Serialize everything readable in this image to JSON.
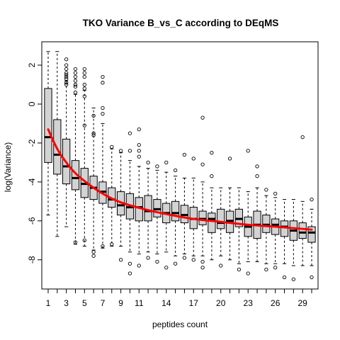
{
  "chart_data": {
    "type": "boxplot",
    "title": "TKO Variance B_vs_C according to DEqMS",
    "xlabel": "peptides count",
    "ylabel": "log(Variance)",
    "x_tick_labels": [
      "1",
      "3",
      "5",
      "7",
      "9",
      "11",
      "14",
      "17",
      "20",
      "23",
      "26",
      "29"
    ],
    "y_ticks": [
      2,
      0,
      -2,
      -4,
      -6,
      -8
    ],
    "y_tick_labels": [
      "2",
      "0",
      "-2",
      "-4",
      "-6",
      "-8"
    ],
    "ylim": [
      -9.5,
      3.2
    ],
    "categories": [
      "1",
      "2",
      "3",
      "4",
      "5",
      "6",
      "7",
      "8",
      "9",
      "10",
      "11",
      "12",
      "13",
      "14",
      "15",
      "16",
      "17",
      "18",
      "19",
      "20",
      "21",
      "22",
      "23",
      "24",
      "25",
      "26",
      "27",
      "28",
      "29",
      "30"
    ],
    "boxes": [
      {
        "lw": -5.7,
        "q1": -3.0,
        "med": -1.7,
        "q3": 0.8,
        "uw": 2.7,
        "out": []
      },
      {
        "lw": -6.8,
        "q1": -3.6,
        "med": -2.6,
        "q3": -0.8,
        "uw": 2.7,
        "out": []
      },
      {
        "lw": -6.3,
        "q1": -4.1,
        "med": -3.2,
        "q3": -1.8,
        "uw": 1.2,
        "out": [
          1.3,
          1.4,
          1.5,
          1.6,
          1.8,
          2.0,
          2.3,
          1.1,
          1.0
        ]
      },
      {
        "lw": -7.2,
        "q1": -4.4,
        "med": -3.8,
        "q3": -2.9,
        "uw": 0.5,
        "out": [
          0.9,
          1.0,
          1.2,
          1.4,
          1.6,
          1.8,
          0.6,
          -7.1
        ]
      },
      {
        "lw": -7.3,
        "q1": -4.8,
        "med": -4.1,
        "q3": -3.3,
        "uw": 0.7,
        "out": [
          0.8,
          1.0,
          1.4,
          1.6,
          1.8,
          0.4,
          -1.1,
          -7.0
        ]
      },
      {
        "lw": -7.5,
        "q1": -4.9,
        "med": -4.3,
        "q3": -3.7,
        "uw": -0.2,
        "out": [
          -0.6,
          -1.5,
          -1.6,
          -7.6,
          -7.8
        ]
      },
      {
        "lw": -7.4,
        "q1": -5.1,
        "med": -4.5,
        "q3": -4.0,
        "uw": -1.0,
        "out": [
          -0.2,
          -0.5,
          1.1,
          1.4,
          -7.3
        ]
      },
      {
        "lw": -7.3,
        "q1": -5.3,
        "med": -4.9,
        "q3": -4.3,
        "uw": -2.3,
        "out": [
          -2.2,
          -7.2
        ]
      },
      {
        "lw": -7.3,
        "q1": -5.7,
        "med": -5.2,
        "q3": -4.5,
        "uw": -2.5,
        "out": [
          -2.4,
          -8.0
        ]
      },
      {
        "lw": -7.6,
        "q1": -5.9,
        "med": -5.3,
        "q3": -4.6,
        "uw": -2.9,
        "out": [
          -1.5,
          -2.4,
          -8.2,
          -8.7
        ]
      },
      {
        "lw": -7.7,
        "q1": -6.0,
        "med": -5.3,
        "q3": -4.8,
        "uw": -3.2,
        "out": [
          -1.3,
          -2.1,
          -2.4,
          -2.7,
          -8.3
        ]
      },
      {
        "lw": -7.6,
        "q1": -6.0,
        "med": -5.5,
        "q3": -4.7,
        "uw": -3.3,
        "out": [
          -3.0,
          -7.9
        ]
      },
      {
        "lw": -7.7,
        "q1": -5.8,
        "med": -5.4,
        "q3": -4.9,
        "uw": -3.4,
        "out": [
          -3.2,
          -8.1
        ]
      },
      {
        "lw": -7.6,
        "q1": -6.1,
        "med": -5.6,
        "q3": -5.1,
        "uw": -3.5,
        "out": [
          -3.0,
          -8.4
        ]
      },
      {
        "lw": -7.8,
        "q1": -6.0,
        "med": -5.6,
        "q3": -5.0,
        "uw": -3.7,
        "out": [
          -3.4,
          -8.2
        ]
      },
      {
        "lw": -7.7,
        "q1": -6.1,
        "med": -5.7,
        "q3": -5.2,
        "uw": -3.8,
        "out": [
          -2.6,
          -7.9
        ]
      },
      {
        "lw": -7.8,
        "q1": -6.4,
        "med": -5.9,
        "q3": -5.3,
        "uw": -3.8,
        "out": [
          -2.8,
          -8.0
        ]
      },
      {
        "lw": -7.8,
        "q1": -6.2,
        "med": -5.9,
        "q3": -5.5,
        "uw": -4.0,
        "out": [
          -0.7,
          -3.1,
          -8.1,
          -8.4
        ]
      },
      {
        "lw": -8.0,
        "q1": -6.6,
        "med": -5.9,
        "q3": -5.6,
        "uw": -4.3,
        "out": [
          -2.5,
          -3.7
        ]
      },
      {
        "lw": -7.8,
        "q1": -6.4,
        "med": -6.1,
        "q3": -5.4,
        "uw": -4.3,
        "out": [
          -8.3
        ]
      },
      {
        "lw": -8.0,
        "q1": -6.6,
        "med": -6.0,
        "q3": -5.5,
        "uw": -4.3,
        "out": [
          -2.8
        ]
      },
      {
        "lw": -8.2,
        "q1": -6.3,
        "med": -5.9,
        "q3": -5.4,
        "uw": -4.3,
        "out": [
          -8.5
        ]
      },
      {
        "lw": -8.1,
        "q1": -6.8,
        "med": -6.3,
        "q3": -5.8,
        "uw": -4.5,
        "out": [
          -2.4,
          -8.7
        ]
      },
      {
        "lw": -8.1,
        "q1": -6.9,
        "med": -6.2,
        "q3": -5.5,
        "uw": -4.3,
        "out": [
          -3.2,
          -3.7
        ]
      },
      {
        "lw": -8.2,
        "q1": -6.6,
        "med": -6.2,
        "q3": -5.7,
        "uw": -4.7,
        "out": [
          -4.4,
          -8.5
        ]
      },
      {
        "lw": -8.2,
        "q1": -6.7,
        "med": -6.2,
        "q3": -5.9,
        "uw": -4.8,
        "out": [
          -4.6,
          -8.4
        ]
      },
      {
        "lw": -8.2,
        "q1": -6.8,
        "med": -6.3,
        "q3": -6.0,
        "uw": -4.9,
        "out": [
          -8.9
        ]
      },
      {
        "lw": -8.3,
        "q1": -7.0,
        "med": -6.5,
        "q3": -6.0,
        "uw": -4.9,
        "out": [
          -9.0
        ]
      },
      {
        "lw": -8.3,
        "q1": -6.9,
        "med": -6.6,
        "q3": -6.1,
        "uw": -5.0,
        "out": [
          -1.7
        ]
      },
      {
        "lw": -8.3,
        "q1": -7.1,
        "med": -6.6,
        "q3": -6.3,
        "uw": -5.4,
        "out": [
          -4.9,
          -8.9
        ]
      }
    ],
    "trend_line": {
      "color": "#ff0000",
      "x": [
        1,
        2,
        3,
        4,
        5,
        6,
        7,
        8,
        9,
        10,
        12,
        14,
        17,
        20,
        23,
        26,
        30
      ],
      "y": [
        -1.3,
        -2.3,
        -3.0,
        -3.55,
        -3.95,
        -4.3,
        -4.6,
        -4.85,
        -5.05,
        -5.2,
        -5.45,
        -5.65,
        -5.9,
        -6.05,
        -6.2,
        -6.3,
        -6.45
      ]
    },
    "box_fill": "#d3d3d3",
    "median_color": "#000000"
  }
}
